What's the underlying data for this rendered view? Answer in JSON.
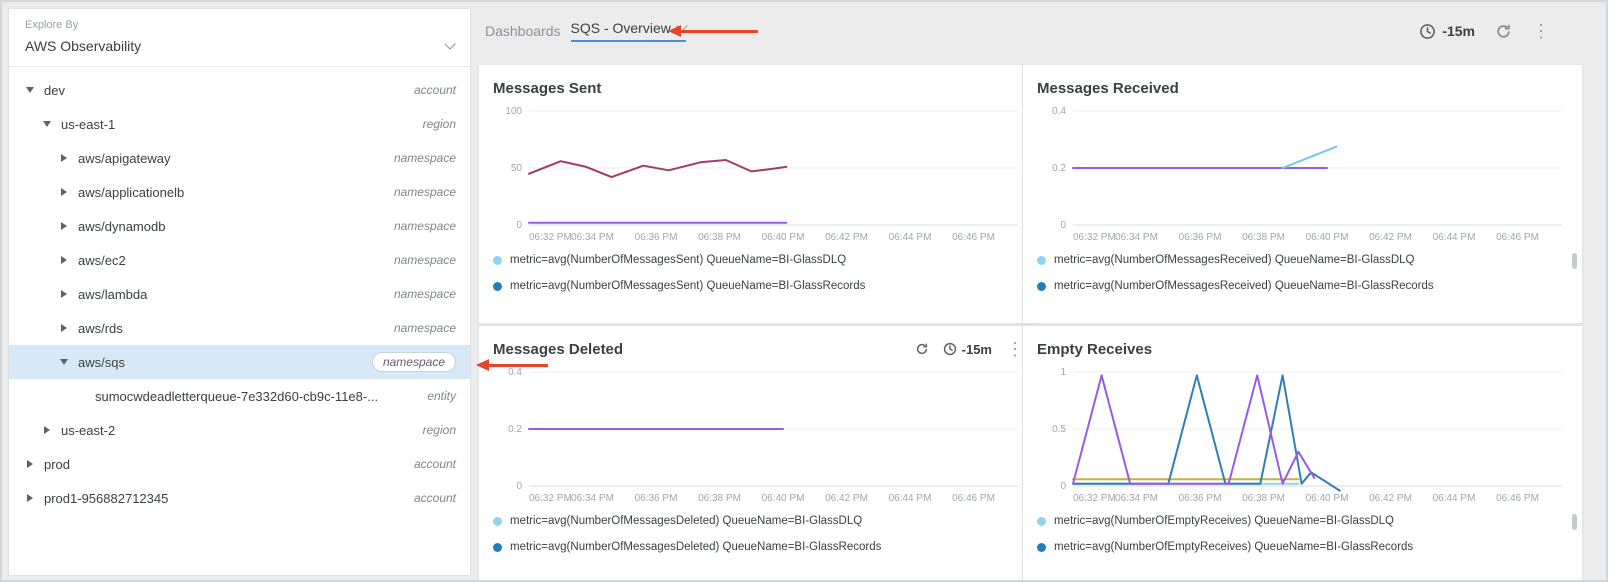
{
  "colors": {
    "accent_blue": "#4a90d9",
    "annotation_red": "#e8432b",
    "selected_row_bg": "#d7e9f7",
    "legend_dlq_dot": "#8fd4f1",
    "legend_records_dot": "#2180b9"
  },
  "icons": {
    "kebab": "⋮"
  },
  "sidebar": {
    "explore_by_label": "Explore By",
    "source_selector": "AWS Observability",
    "tree": [
      {
        "label": "dev",
        "badge": "account",
        "depth": 0,
        "state": "expanded",
        "selected": false
      },
      {
        "label": "us-east-1",
        "badge": "region",
        "depth": 1,
        "state": "expanded",
        "selected": false
      },
      {
        "label": "aws/apigateway",
        "badge": "namespace",
        "depth": 2,
        "state": "collapsed",
        "selected": false
      },
      {
        "label": "aws/applicationelb",
        "badge": "namespace",
        "depth": 2,
        "state": "collapsed",
        "selected": false
      },
      {
        "label": "aws/dynamodb",
        "badge": "namespace",
        "depth": 2,
        "state": "collapsed",
        "selected": false
      },
      {
        "label": "aws/ec2",
        "badge": "namespace",
        "depth": 2,
        "state": "collapsed",
        "selected": false
      },
      {
        "label": "aws/lambda",
        "badge": "namespace",
        "depth": 2,
        "state": "collapsed",
        "selected": false
      },
      {
        "label": "aws/rds",
        "badge": "namespace",
        "depth": 2,
        "state": "collapsed",
        "selected": false
      },
      {
        "label": "aws/sqs",
        "badge": "namespace",
        "depth": 2,
        "state": "expanded",
        "selected": true
      },
      {
        "label": "sumocwdeadletterqueue-7e332d60-cb9c-11e8-...",
        "badge": "entity",
        "depth": 3,
        "state": "leaf",
        "selected": false
      },
      {
        "label": "us-east-2",
        "badge": "region",
        "depth": 1,
        "state": "collapsed",
        "selected": false
      },
      {
        "label": "prod",
        "badge": "account",
        "depth": 0,
        "state": "collapsed",
        "selected": false
      },
      {
        "label": "prod1-956882712345",
        "badge": "account",
        "depth": 0,
        "state": "collapsed",
        "selected": false
      }
    ]
  },
  "header": {
    "breadcrumb": "Dashboards",
    "dashboard_title": "SQS - Overview",
    "time_range": "-15m"
  },
  "panel_toolbar": {
    "time_range": "-15m"
  },
  "chart_data": [
    {
      "type": "line",
      "title": "Messages Sent",
      "x_ticks": [
        "06:32 PM",
        "06:34 PM",
        "06:36 PM",
        "06:38 PM",
        "06:40 PM",
        "06:42 PM",
        "06:44 PM",
        "06:46 PM"
      ],
      "ylim": [
        0,
        100
      ],
      "y_ticks": [
        0,
        50,
        100
      ],
      "grid": true,
      "legend_position": "bottom",
      "lines": [
        {
          "color": "#a23b68",
          "points": [
            [
              0,
              45
            ],
            [
              0.5,
              56
            ],
            [
              0.9,
              51
            ],
            [
              1.3,
              42
            ],
            [
              1.8,
              52
            ],
            [
              2.2,
              48
            ],
            [
              2.7,
              55
            ],
            [
              3.1,
              57
            ],
            [
              3.5,
              47
            ],
            [
              3.8,
              49
            ],
            [
              4.05,
              51
            ]
          ]
        },
        {
          "color": "#9b59e8",
          "points": [
            [
              0,
              2
            ],
            [
              4.05,
              2
            ]
          ]
        }
      ],
      "legend": [
        {
          "label": "metric=avg(NumberOfMessagesSent) QueueName=BI-GlassDLQ",
          "color": "#8fd4f1"
        },
        {
          "label": "metric=avg(NumberOfMessagesSent) QueueName=BI-GlassRecords",
          "color": "#2180b9"
        }
      ]
    },
    {
      "type": "line",
      "title": "Messages Received",
      "x_ticks": [
        "06:32 PM",
        "06:34 PM",
        "06:36 PM",
        "06:38 PM",
        "06:40 PM",
        "06:42 PM",
        "06:44 PM",
        "06:46 PM"
      ],
      "ylim": [
        0,
        0.4
      ],
      "y_ticks": [
        0,
        0.2,
        0.4
      ],
      "grid": true,
      "legend_position": "bottom",
      "lines": [
        {
          "color": "#9b59e8",
          "points": [
            [
              0,
              0.2
            ],
            [
              4.0,
              0.2
            ]
          ]
        },
        {
          "color": "#6ec9ec",
          "points": [
            [
              3.3,
              0.2
            ],
            [
              4.15,
              0.275
            ]
          ]
        }
      ],
      "legend": [
        {
          "label": "metric=avg(NumberOfMessagesReceived) QueueName=BI-GlassDLQ",
          "color": "#8fd4f1"
        },
        {
          "label": "metric=avg(NumberOfMessagesReceived) QueueName=BI-GlassRecords",
          "color": "#2180b9"
        }
      ]
    },
    {
      "type": "line",
      "title": "Messages Deleted",
      "x_ticks": [
        "06:32 PM",
        "06:34 PM",
        "06:36 PM",
        "06:38 PM",
        "06:40 PM",
        "06:42 PM",
        "06:44 PM",
        "06:46 PM"
      ],
      "ylim": [
        0,
        0.4
      ],
      "y_ticks": [
        0,
        0.2,
        0.4
      ],
      "grid": true,
      "legend_position": "bottom",
      "lines": [
        {
          "color": "#9b59e8",
          "points": [
            [
              0,
              0.2
            ],
            [
              4.0,
              0.2
            ]
          ]
        }
      ],
      "legend": [
        {
          "label": "metric=avg(NumberOfMessagesDeleted) QueueName=BI-GlassDLQ",
          "color": "#8fd4f1"
        },
        {
          "label": "metric=avg(NumberOfMessagesDeleted) QueueName=BI-GlassRecords",
          "color": "#2180b9"
        }
      ]
    },
    {
      "type": "line",
      "title": "Empty Receives",
      "x_ticks": [
        "06:32 PM",
        "06:34 PM",
        "06:36 PM",
        "06:38 PM",
        "06:40 PM",
        "06:42 PM",
        "06:44 PM",
        "06:46 PM"
      ],
      "ylim": [
        0,
        1
      ],
      "y_ticks": [
        0,
        0.5,
        1
      ],
      "grid": true,
      "legend_position": "bottom",
      "lines": [
        {
          "color": "#8fd4f1",
          "points": [
            [
              0,
              0.02
            ],
            [
              3.55,
              0.02
            ]
          ]
        },
        {
          "color": "#c4b43e",
          "points": [
            [
              0,
              0.06
            ],
            [
              3.55,
              0.06
            ]
          ]
        },
        {
          "color": "#2e7fb8",
          "points": [
            [
              0,
              0.02
            ],
            [
              1.5,
              0.02
            ],
            [
              1.95,
              0.97
            ],
            [
              2.4,
              0.02
            ],
            [
              2.95,
              0.02
            ],
            [
              3.3,
              0.97
            ],
            [
              3.6,
              0.02
            ],
            [
              3.75,
              0.12
            ],
            [
              4.2,
              -0.04
            ]
          ]
        },
        {
          "color": "#9b59e8",
          "points": [
            [
              0,
              0.02
            ],
            [
              0.45,
              0.97
            ],
            [
              0.9,
              0.02
            ],
            [
              2.45,
              0.02
            ],
            [
              2.9,
              0.97
            ],
            [
              3.3,
              0.02
            ],
            [
              3.55,
              0.3
            ],
            [
              3.8,
              0.07
            ]
          ]
        }
      ],
      "legend": [
        {
          "label": "metric=avg(NumberOfEmptyReceives) QueueName=BI-GlassDLQ",
          "color": "#8fd4f1"
        },
        {
          "label": "metric=avg(NumberOfEmptyReceives) QueueName=BI-GlassRecords",
          "color": "#2180b9"
        }
      ]
    }
  ]
}
